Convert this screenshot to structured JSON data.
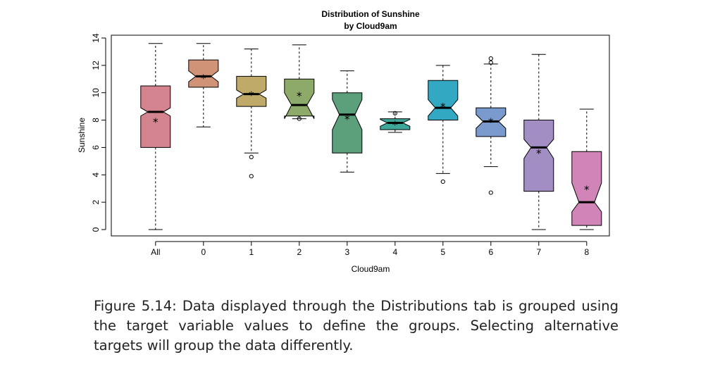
{
  "caption": {
    "text": "Figure 5.14: Data displayed through the Distributions tab is grouped using the target variable values to define the groups. Selecting alternative targets will group the data differently."
  },
  "chart_data": {
    "type": "boxplot",
    "title": "Distribution of Sunshine",
    "subtitle": "by Cloud9am",
    "xlabel": "Cloud9am",
    "ylabel": "Sunshine",
    "ylim": [
      0,
      14
    ],
    "yticks": [
      0,
      2,
      4,
      6,
      8,
      10,
      12,
      14
    ],
    "notched": true,
    "grid": false,
    "categories": [
      "All",
      "0",
      "1",
      "2",
      "3",
      "4",
      "5",
      "6",
      "7",
      "8"
    ],
    "boxes": [
      {
        "category": "All",
        "color": "#D4848F",
        "whisker_low": 0.0,
        "q1": 6.0,
        "median": 8.6,
        "q3": 10.5,
        "whisker_high": 13.6,
        "notch_low": 8.3,
        "notch_high": 8.9,
        "mean": 7.9,
        "outliers": []
      },
      {
        "category": "0",
        "color": "#D19378",
        "whisker_low": 7.5,
        "q1": 10.4,
        "median": 11.2,
        "q3": 12.4,
        "whisker_high": 13.6,
        "notch_low": 10.8,
        "notch_high": 11.6,
        "mean": 11.1,
        "outliers": []
      },
      {
        "category": "1",
        "color": "#BFAA6A",
        "whisker_low": 5.6,
        "q1": 9.0,
        "median": 9.9,
        "q3": 11.2,
        "whisker_high": 13.2,
        "notch_low": 9.6,
        "notch_high": 10.2,
        "mean": 9.85,
        "outliers": [
          5.3,
          3.9
        ]
      },
      {
        "category": "2",
        "color": "#8EAA6A",
        "whisker_low": 8.1,
        "q1": 8.3,
        "median": 9.1,
        "q3": 11.0,
        "whisker_high": 13.5,
        "notch_low": 8.1,
        "notch_high": 10.0,
        "mean": 9.8,
        "outliers": [
          8.1
        ]
      },
      {
        "category": "3",
        "color": "#5BA07A",
        "whisker_low": 4.2,
        "q1": 5.6,
        "median": 8.4,
        "q3": 10.0,
        "whisker_high": 11.6,
        "notch_low": 7.3,
        "notch_high": 9.5,
        "mean": 8.1,
        "outliers": []
      },
      {
        "category": "4",
        "color": "#3FA79A",
        "whisker_low": 7.1,
        "q1": 7.3,
        "median": 7.8,
        "q3": 8.1,
        "whisker_high": 8.6,
        "notch_low": 7.55,
        "notch_high": 8.05,
        "mean": 7.7,
        "outliers": [
          8.5
        ]
      },
      {
        "category": "5",
        "color": "#33A8C2",
        "whisker_low": 4.1,
        "q1": 8.0,
        "median": 8.9,
        "q3": 10.9,
        "whisker_high": 12.0,
        "notch_low": 8.3,
        "notch_high": 9.5,
        "mean": 9.0,
        "outliers": [
          3.5
        ]
      },
      {
        "category": "6",
        "color": "#7A9ACD",
        "whisker_low": 4.6,
        "q1": 6.8,
        "median": 7.9,
        "q3": 8.9,
        "whisker_high": 12.1,
        "notch_low": 7.4,
        "notch_high": 8.4,
        "mean": 7.9,
        "outliers": [
          12.2,
          12.5,
          2.7
        ]
      },
      {
        "category": "7",
        "color": "#A38EC4",
        "whisker_low": 0.0,
        "q1": 2.8,
        "median": 6.0,
        "q3": 8.0,
        "whisker_high": 12.8,
        "notch_low": 5.2,
        "notch_high": 6.6,
        "mean": 5.6,
        "outliers": []
      },
      {
        "category": "8",
        "color": "#D184B8",
        "whisker_low": 0.0,
        "q1": 0.3,
        "median": 2.0,
        "q3": 5.7,
        "whisker_high": 8.8,
        "notch_low": 1.3,
        "notch_high": 3.4,
        "mean": 2.95,
        "outliers": []
      }
    ]
  }
}
